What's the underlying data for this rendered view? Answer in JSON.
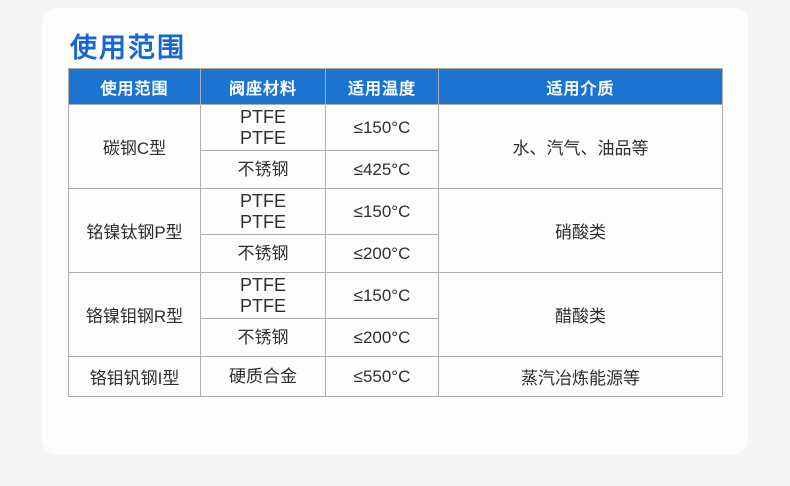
{
  "page": {
    "title": "使用范围",
    "colors": {
      "title": "#1667d3",
      "table_header_bg": "#1b74d0",
      "background": "#f5f5f6",
      "card": "#fdfdfe",
      "border": "#adadad"
    }
  },
  "table": {
    "headers": [
      "使用范围",
      "阀座材料",
      "适用温度",
      "适用介质"
    ],
    "groups": [
      {
        "range": "碳钢C型",
        "medium": "水、汽气、油品等",
        "rows": [
          {
            "material": [
              "PTFE",
              "PTFE"
            ],
            "temp": "≤150°C"
          },
          {
            "material": [
              "不锈钢"
            ],
            "temp": "≤425°C"
          }
        ]
      },
      {
        "range": "铭镍钛钢P型",
        "medium": "硝酸类",
        "rows": [
          {
            "material": [
              "PTFE",
              "PTFE"
            ],
            "temp": "≤150°C"
          },
          {
            "material": [
              "不锈钢"
            ],
            "temp": "≤200°C"
          }
        ]
      },
      {
        "range": "铬镍钼钢R型",
        "medium": "醋酸类",
        "rows": [
          {
            "material": [
              "PTFE",
              "PTFE"
            ],
            "temp": "≤150°C"
          },
          {
            "material": [
              "不锈钢"
            ],
            "temp": "≤200°C"
          }
        ]
      },
      {
        "range": "铬钼钒钢I型",
        "medium": "蒸汽冶炼能源等",
        "rows": [
          {
            "material": [
              "硬质合金"
            ],
            "temp": "≤550°C"
          }
        ]
      }
    ]
  }
}
